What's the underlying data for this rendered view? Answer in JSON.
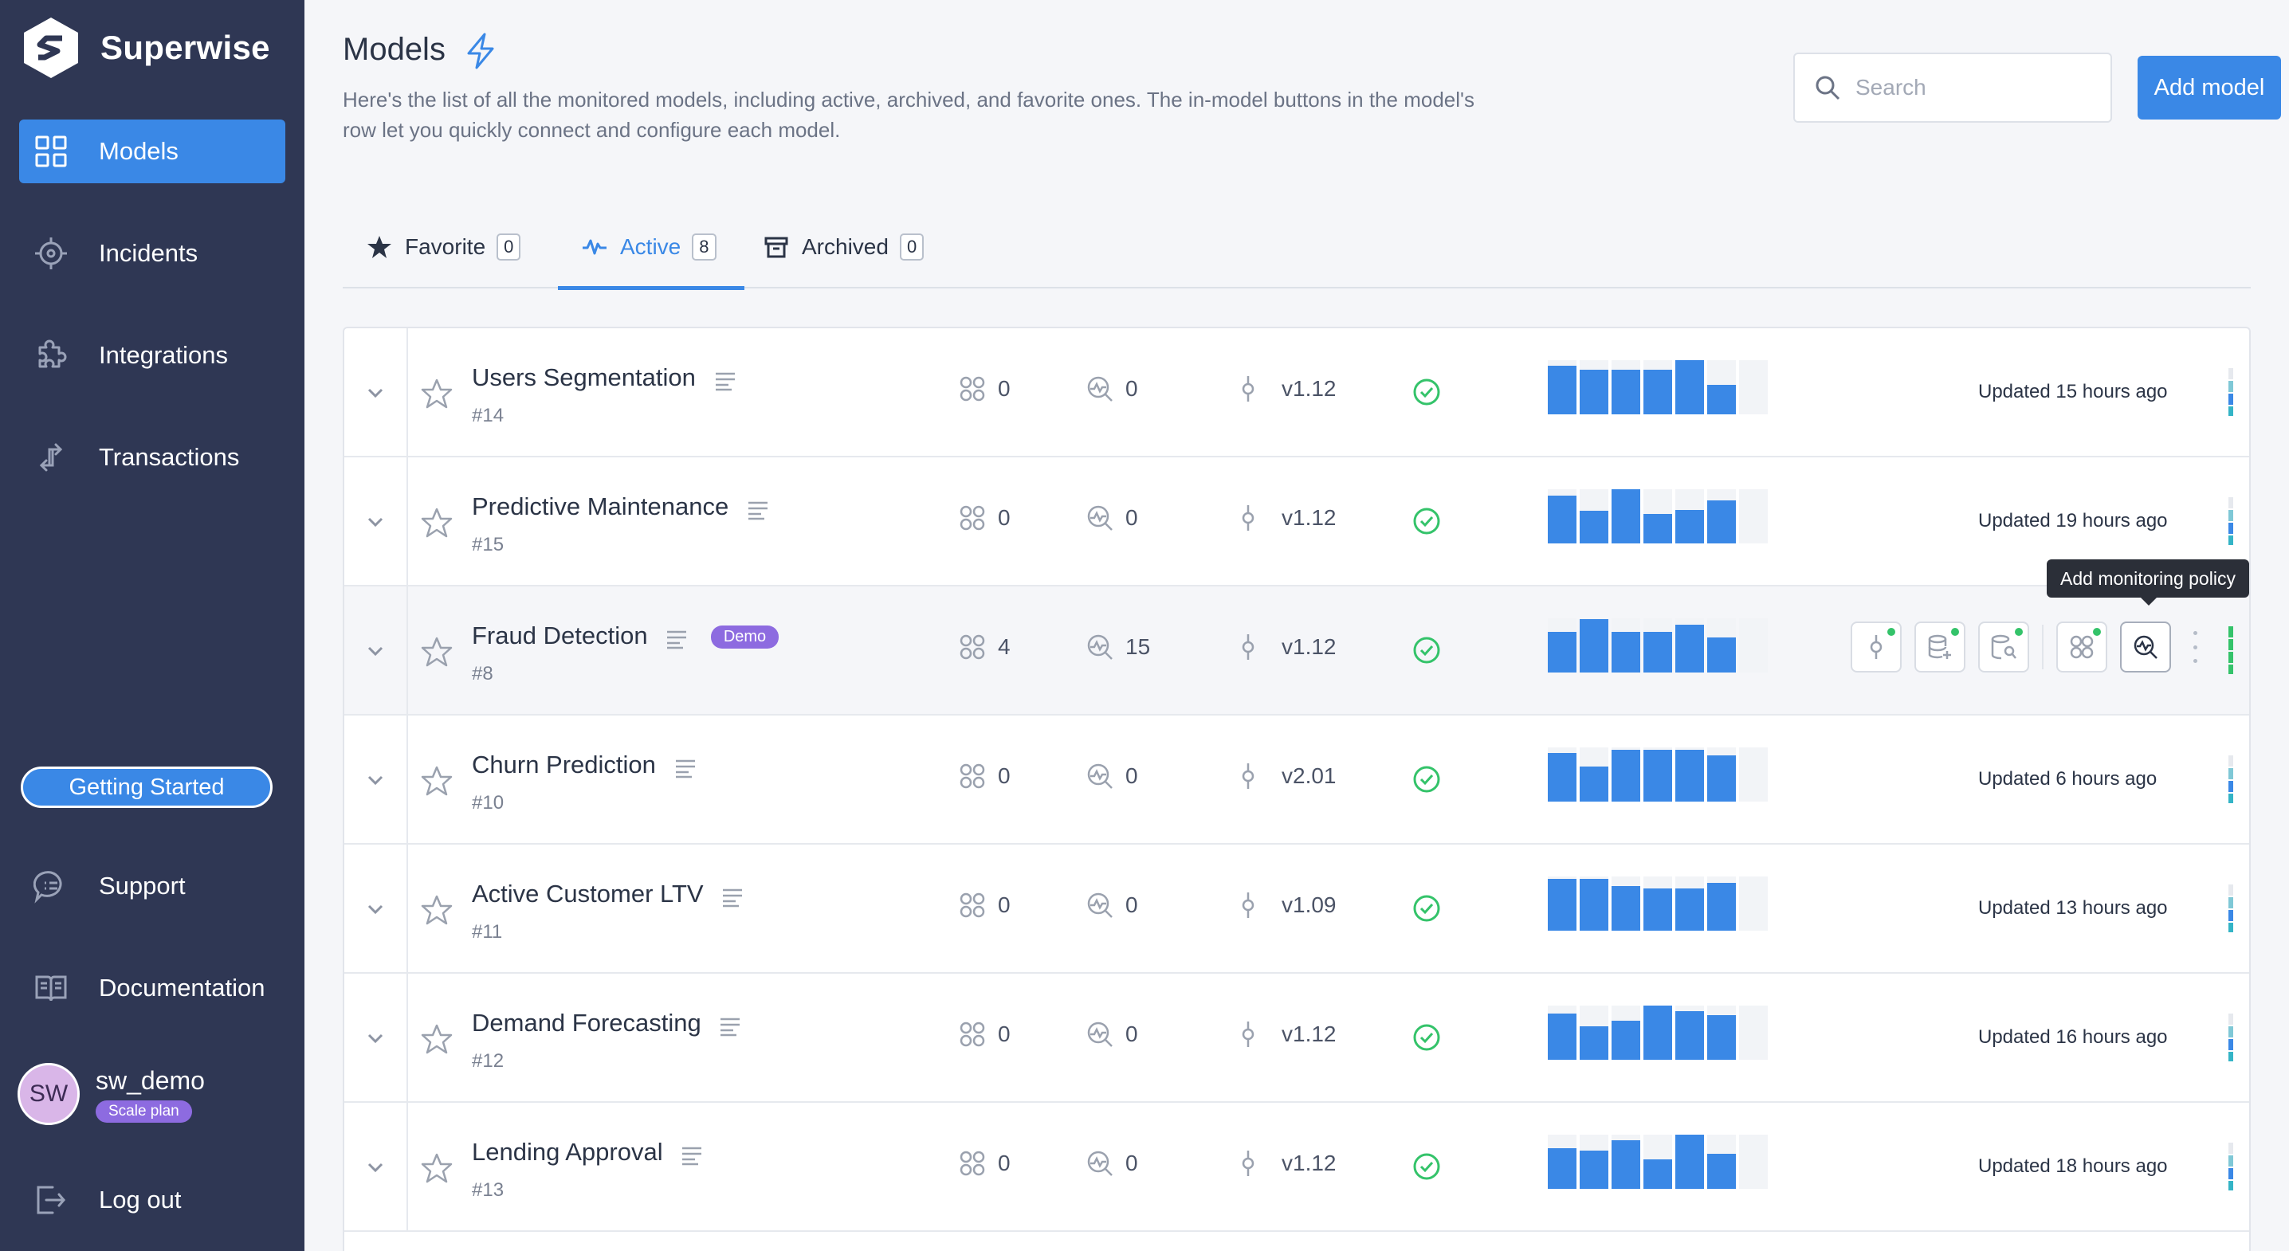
{
  "app": {
    "brand": "Superwise"
  },
  "sidebar": {
    "items": [
      {
        "label": "Models",
        "icon": "grid-icon",
        "active": true
      },
      {
        "label": "Incidents",
        "icon": "crosshair-icon",
        "active": false
      },
      {
        "label": "Integrations",
        "icon": "puzzle-icon",
        "active": false
      },
      {
        "label": "Transactions",
        "icon": "transfer-icon",
        "active": false
      }
    ],
    "getting_started": "Getting Started",
    "bottom": [
      {
        "label": "Support",
        "icon": "chat-icon"
      },
      {
        "label": "Documentation",
        "icon": "book-icon"
      }
    ],
    "user": {
      "initials": "SW",
      "name": "sw_demo",
      "plan": "Scale plan"
    },
    "logout": "Log out"
  },
  "header": {
    "title": "Models",
    "description": "Here's the list of all the monitored models, including active, archived, and favorite ones. The in-model buttons in the model's row let you quickly connect and configure each model.",
    "search_placeholder": "Search",
    "add_button": "Add model"
  },
  "tabs": [
    {
      "label": "Favorite",
      "count": "0",
      "icon": "star-icon"
    },
    {
      "label": "Active",
      "count": "8",
      "icon": "activity-icon",
      "active": true
    },
    {
      "label": "Archived",
      "count": "0",
      "icon": "archive-icon"
    }
  ],
  "colors": {
    "accent": "#3a88e6",
    "sidebar": "#2f3754",
    "success": "#34c36a",
    "badge": "#8d6be0"
  },
  "tooltip": "Add monitoring policy",
  "models": [
    {
      "name": "Users Segmentation",
      "id": "#14",
      "segments": "0",
      "policies": "0",
      "version": "v1.12",
      "updated": "Updated 15 hours ago",
      "bars": [
        0.9,
        0.82,
        0.82,
        0.82,
        1.0,
        0.55,
        0.0
      ]
    },
    {
      "name": "Predictive Maintenance",
      "id": "#15",
      "segments": "0",
      "policies": "0",
      "version": "v1.12",
      "updated": "Updated 19 hours ago",
      "bars": [
        0.88,
        0.6,
        1.0,
        0.55,
        0.62,
        0.8,
        0.0
      ]
    },
    {
      "name": "Fraud Detection",
      "id": "#8",
      "badge": "Demo",
      "segments": "4",
      "policies": "15",
      "version": "v1.12",
      "updated": "",
      "bars": [
        0.75,
        0.98,
        0.75,
        0.75,
        0.88,
        0.65,
        0.0
      ]
    },
    {
      "name": "Churn Prediction",
      "id": "#10",
      "segments": "0",
      "policies": "0",
      "version": "v2.01",
      "updated": "Updated 6 hours ago",
      "bars": [
        0.9,
        0.65,
        0.95,
        0.95,
        0.95,
        0.85,
        0.0
      ]
    },
    {
      "name": "Active Customer LTV",
      "id": "#11",
      "segments": "0",
      "policies": "0",
      "version": "v1.09",
      "updated": "Updated 13 hours ago",
      "bars": [
        0.95,
        0.95,
        0.82,
        0.78,
        0.78,
        0.88,
        0.0
      ]
    },
    {
      "name": "Demand Forecasting",
      "id": "#12",
      "segments": "0",
      "policies": "0",
      "version": "v1.12",
      "updated": "Updated 16 hours ago",
      "bars": [
        0.85,
        0.62,
        0.72,
        1.0,
        0.9,
        0.82,
        0.0
      ]
    },
    {
      "name": "Lending Approval",
      "id": "#13",
      "segments": "0",
      "policies": "0",
      "version": "v1.12",
      "updated": "Updated 18 hours ago",
      "bars": [
        0.75,
        0.7,
        0.9,
        0.55,
        1.0,
        0.65,
        0.0
      ]
    }
  ]
}
